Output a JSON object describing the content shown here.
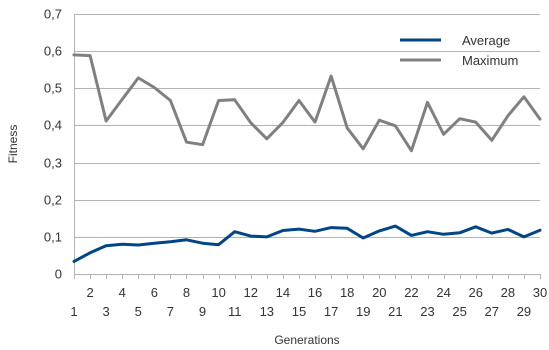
{
  "chart_data": {
    "type": "line",
    "xlabel": "Generations",
    "ylabel": "Fitness",
    "ylim": [
      0,
      0.7
    ],
    "ytick_step": 0.1,
    "x": [
      1,
      2,
      3,
      4,
      5,
      6,
      7,
      8,
      9,
      10,
      11,
      12,
      13,
      14,
      15,
      16,
      17,
      18,
      19,
      20,
      21,
      22,
      23,
      24,
      25,
      26,
      27,
      28,
      29,
      30
    ],
    "yticks": [
      "0",
      "0,1",
      "0,2",
      "0,3",
      "0,4",
      "0,5",
      "0,6",
      "0,7"
    ],
    "grid": true,
    "legend_position": "top-right",
    "series": [
      {
        "name": "Average",
        "color": "#004586",
        "values": [
          0.034,
          0.057,
          0.076,
          0.08,
          0.078,
          0.083,
          0.087,
          0.092,
          0.083,
          0.079,
          0.114,
          0.102,
          0.1,
          0.117,
          0.121,
          0.115,
          0.125,
          0.123,
          0.097,
          0.116,
          0.129,
          0.104,
          0.114,
          0.107,
          0.111,
          0.127,
          0.11,
          0.12,
          0.1,
          0.118
        ]
      },
      {
        "name": "Maximum",
        "color": "#808080",
        "values": [
          0.59,
          0.588,
          0.412,
          0.47,
          0.528,
          0.502,
          0.467,
          0.355,
          0.348,
          0.467,
          0.469,
          0.407,
          0.364,
          0.408,
          0.467,
          0.409,
          0.533,
          0.393,
          0.337,
          0.414,
          0.399,
          0.332,
          0.462,
          0.376,
          0.418,
          0.409,
          0.36,
          0.426,
          0.477,
          0.417
        ]
      }
    ]
  }
}
